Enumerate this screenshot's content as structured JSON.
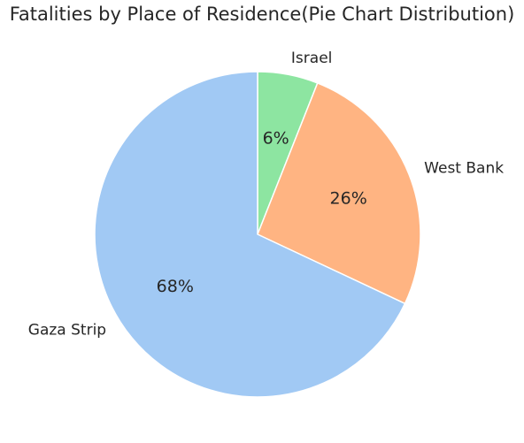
{
  "chart_data": {
    "type": "pie",
    "title": "Fatalities by Place of Residence(Pie Chart Distribution)",
    "slices": [
      {
        "label": "Israel",
        "value": 6,
        "pct_label": "6%",
        "color": "#8de5a1"
      },
      {
        "label": "West Bank",
        "value": 26,
        "pct_label": "26%",
        "color": "#ffb482"
      },
      {
        "label": "Gaza Strip",
        "value": 68,
        "pct_label": "68%",
        "color": "#a1c9f4"
      }
    ],
    "start": "top",
    "direction": "clockwise",
    "legend": "none"
  }
}
